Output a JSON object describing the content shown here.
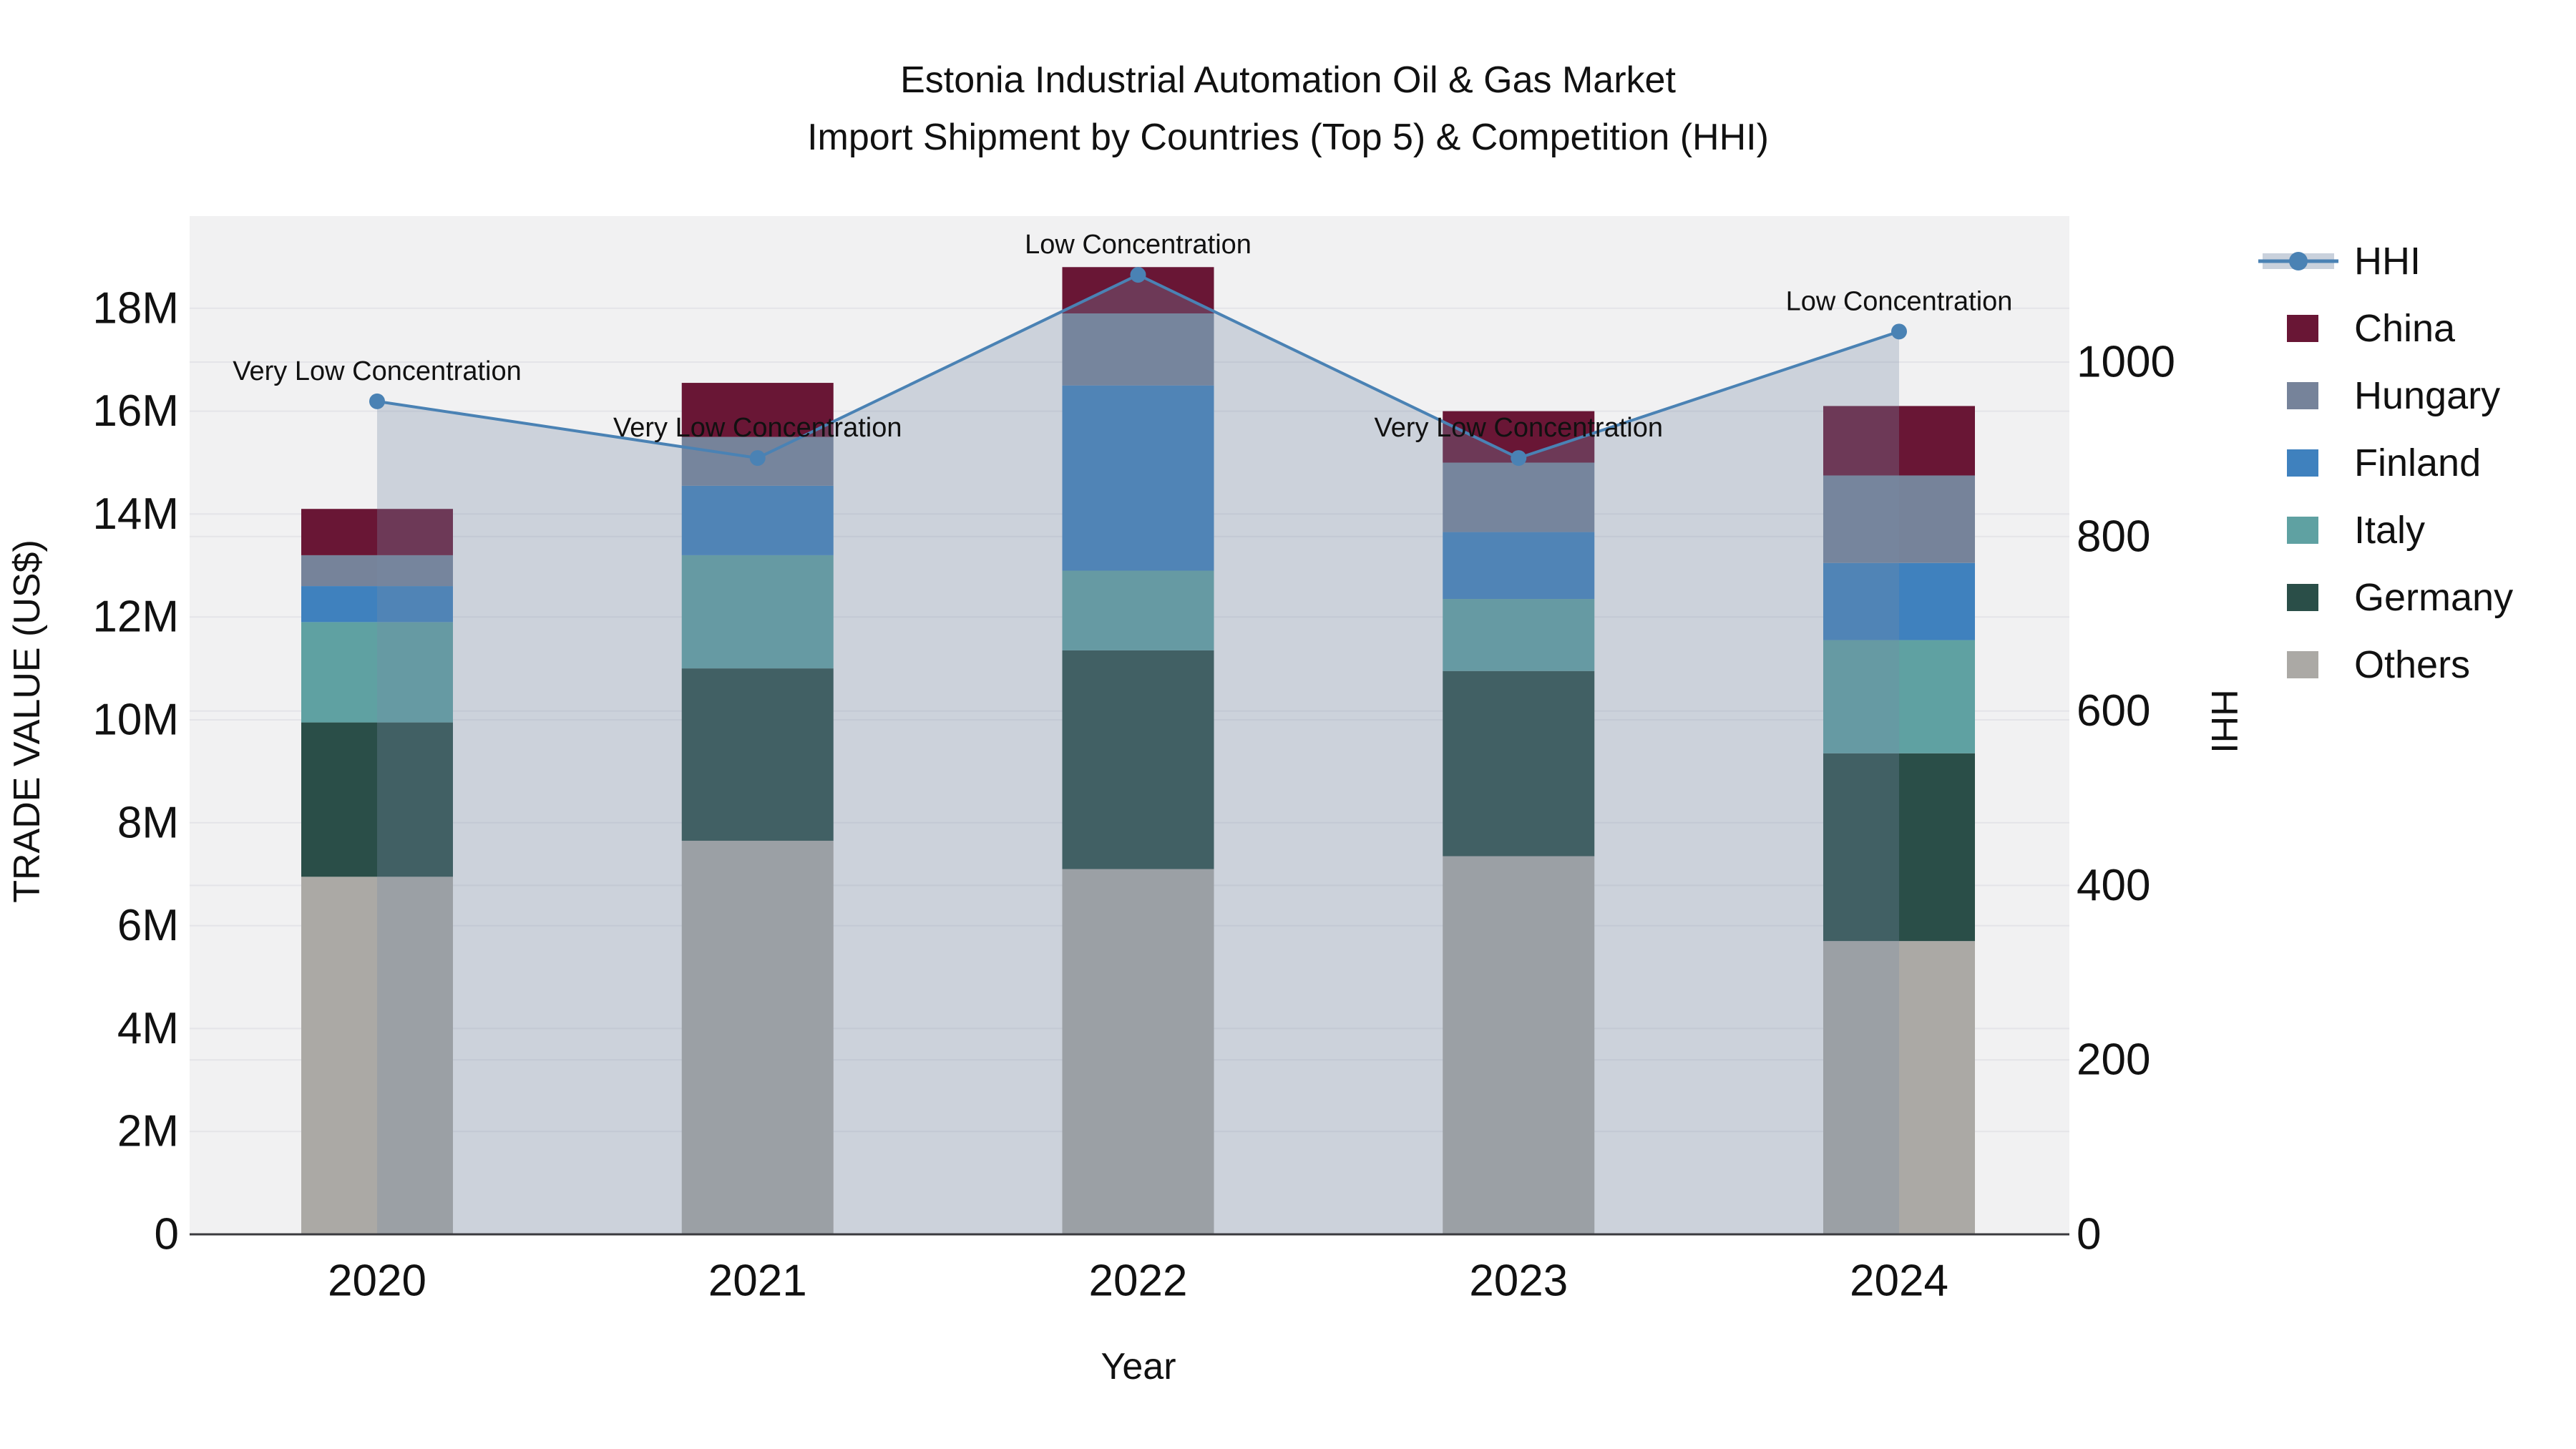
{
  "title": {
    "line1": "Estonia Industrial Automation Oil & Gas Market",
    "line2": "Import Shipment by Countries (Top 5) & Competition (HHI)"
  },
  "chart_data": {
    "type": "bar",
    "stacked": true,
    "grid": true,
    "categories": [
      "2020",
      "2021",
      "2022",
      "2023",
      "2024"
    ],
    "xlabel": "Year",
    "unit_note": "left axis values in millions of US$",
    "y_left": {
      "label": "TRADE VALUE (US$)",
      "tick_values": [
        0,
        2,
        4,
        6,
        8,
        10,
        12,
        14,
        16,
        18
      ],
      "tick_labels": [
        "0",
        "2M",
        "4M",
        "6M",
        "8M",
        "10M",
        "12M",
        "14M",
        "16M",
        "18M"
      ],
      "range_max_ticks": 18
    },
    "y_right": {
      "label": "HHI",
      "tick_values": [
        0,
        200,
        400,
        600,
        800,
        1000
      ],
      "tick_labels": [
        "0",
        "200",
        "400",
        "600",
        "800",
        "1000"
      ]
    },
    "series": [
      {
        "name": "Others",
        "color": "#ABA9A5",
        "values": [
          6.95,
          7.65,
          7.1,
          7.35,
          5.7
        ]
      },
      {
        "name": "Germany",
        "color": "#2A4E48",
        "values": [
          3.0,
          3.35,
          4.25,
          3.6,
          3.65
        ]
      },
      {
        "name": "Italy",
        "color": "#5FA1A2",
        "values": [
          1.95,
          2.2,
          1.55,
          1.4,
          2.2
        ]
      },
      {
        "name": "Finland",
        "color": "#3F81BE",
        "values": [
          0.7,
          1.35,
          3.6,
          1.3,
          1.5
        ]
      },
      {
        "name": "Hungary",
        "color": "#76839A",
        "values": [
          0.6,
          0.95,
          1.4,
          1.35,
          1.7
        ]
      },
      {
        "name": "China",
        "color": "#691635",
        "values": [
          0.9,
          1.05,
          0.9,
          1.0,
          1.35
        ]
      }
    ],
    "bar_totals": [
      14.1,
      16.55,
      18.8,
      16.0,
      16.1
    ],
    "line_series": {
      "name": "HHI",
      "color": "#4A82B4",
      "area_fill": "rgba(120,140,165,0.30)",
      "values": [
        955,
        890,
        1100,
        890,
        1035
      ]
    },
    "annotations": [
      "Very Low Concentration",
      "Very Low Concentration",
      "Low Concentration",
      "Very Low Concentration",
      "Low Concentration"
    ],
    "legend_position": "right"
  },
  "legend": {
    "items": [
      {
        "label": "HHI",
        "type": "line",
        "color": "#4A82B4",
        "band_color": "#C9D1DC"
      },
      {
        "label": "China",
        "type": "swatch",
        "color": "#691635"
      },
      {
        "label": "Hungary",
        "type": "swatch",
        "color": "#76839A"
      },
      {
        "label": "Finland",
        "type": "swatch",
        "color": "#3F81BE"
      },
      {
        "label": "Italy",
        "type": "swatch",
        "color": "#5FA1A2"
      },
      {
        "label": "Germany",
        "type": "swatch",
        "color": "#2A4E48"
      },
      {
        "label": "Others",
        "type": "swatch",
        "color": "#ABA9A5"
      }
    ]
  },
  "style_colors": {
    "plot_background": "#F1F1F2",
    "gridline": "#E4E4E8",
    "axis_line": "#3A3A3E",
    "text": "#111111"
  }
}
